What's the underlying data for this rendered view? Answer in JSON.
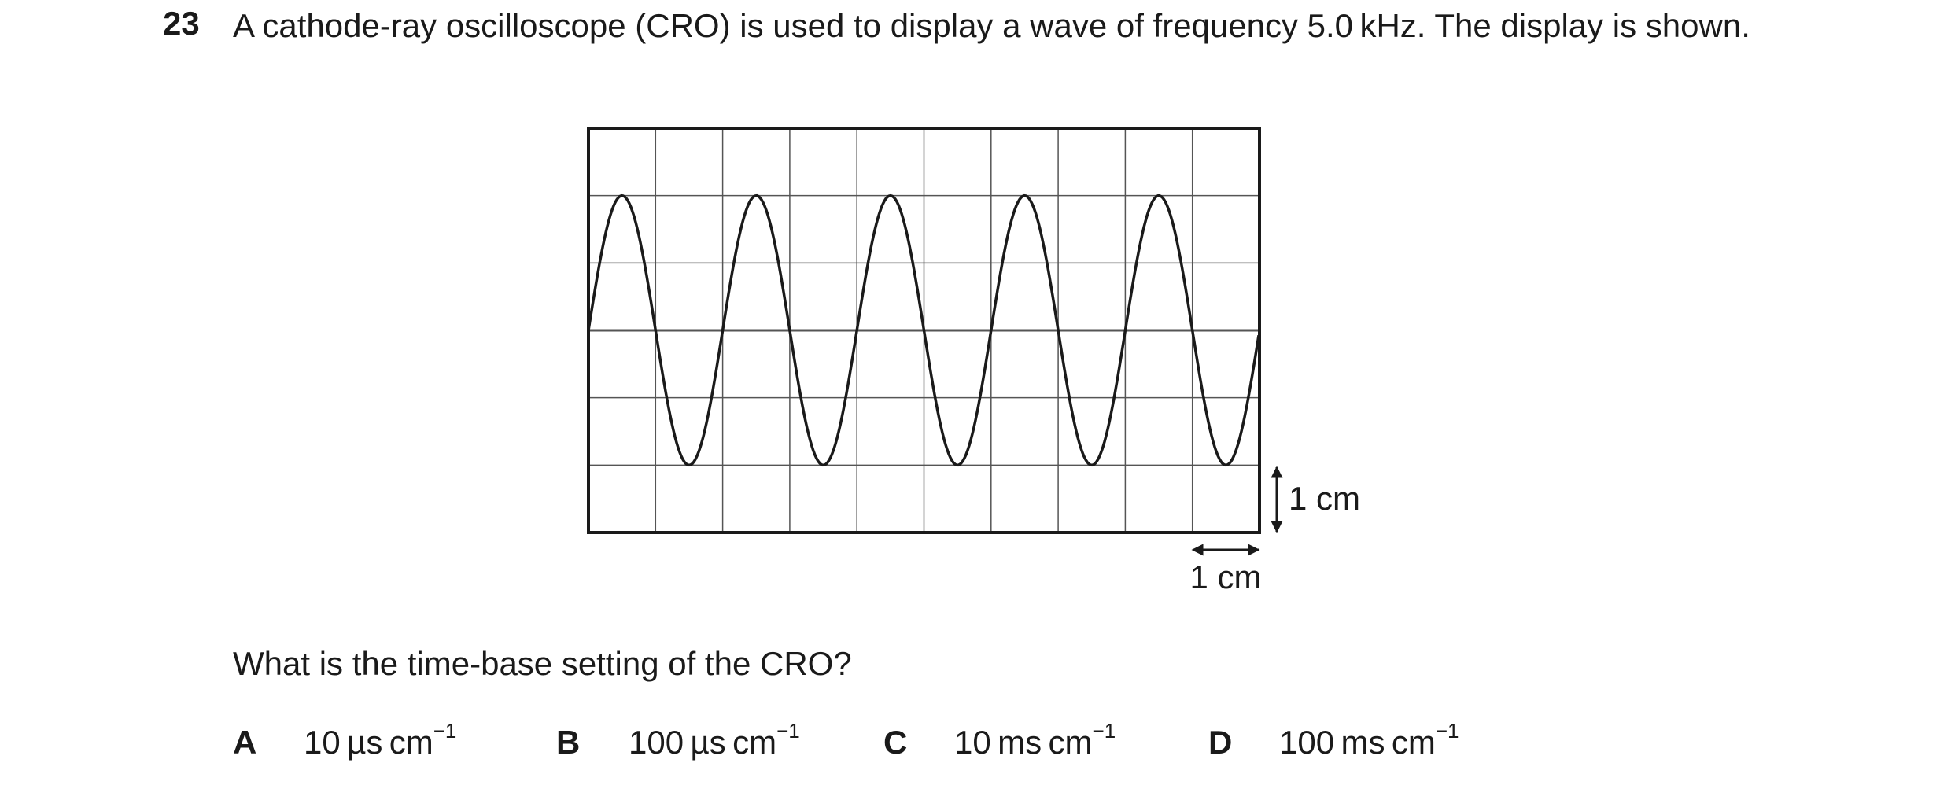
{
  "question": {
    "number": "23",
    "text": "A cathode-ray oscilloscope (CRO) is used to display a wave of frequency 5.0 kHz. The display is shown.",
    "prompt": "What is the time-base setting of the CRO?"
  },
  "diagram": {
    "vertical_scale_label": "1 cm",
    "horizontal_scale_label": "1 cm"
  },
  "options": [
    {
      "letter": "A",
      "value": "10 µs cm",
      "exponent": "−1"
    },
    {
      "letter": "B",
      "value": "100 µs cm",
      "exponent": "−1"
    },
    {
      "letter": "C",
      "value": "10 ms cm",
      "exponent": "−1"
    },
    {
      "letter": "D",
      "value": "100 ms cm",
      "exponent": "−1"
    }
  ]
}
